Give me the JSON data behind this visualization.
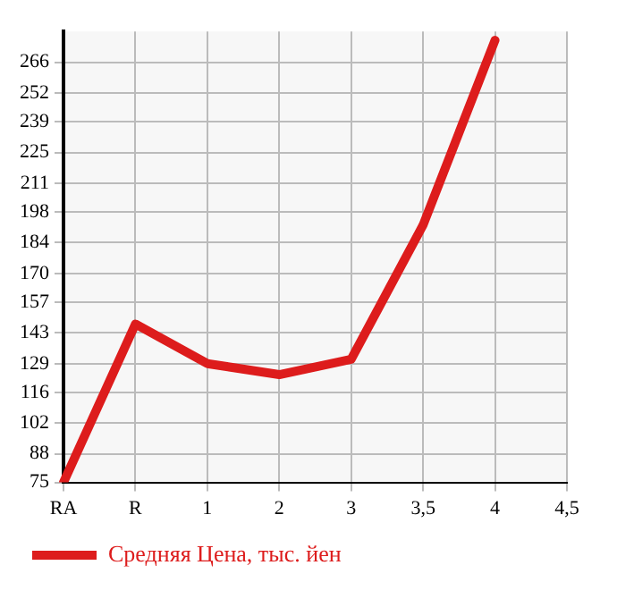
{
  "chart_data": {
    "type": "line",
    "categories": [
      "RA",
      "R",
      "1",
      "2",
      "3",
      "3,5",
      "4",
      "4,5"
    ],
    "series": [
      {
        "name": "Средняя Цена, тыс. йен",
        "color": "#dd1c1c",
        "values": [
          75,
          147,
          129,
          124,
          131,
          192,
          276,
          null
        ]
      }
    ],
    "ylim": [
      75,
      280
    ],
    "yticks": [
      75,
      88,
      102,
      116,
      129,
      143,
      157,
      170,
      184,
      198,
      211,
      225,
      239,
      252,
      266
    ],
    "grid": true,
    "legend": "bottom left",
    "marker": "none",
    "line_style": "solid"
  }
}
